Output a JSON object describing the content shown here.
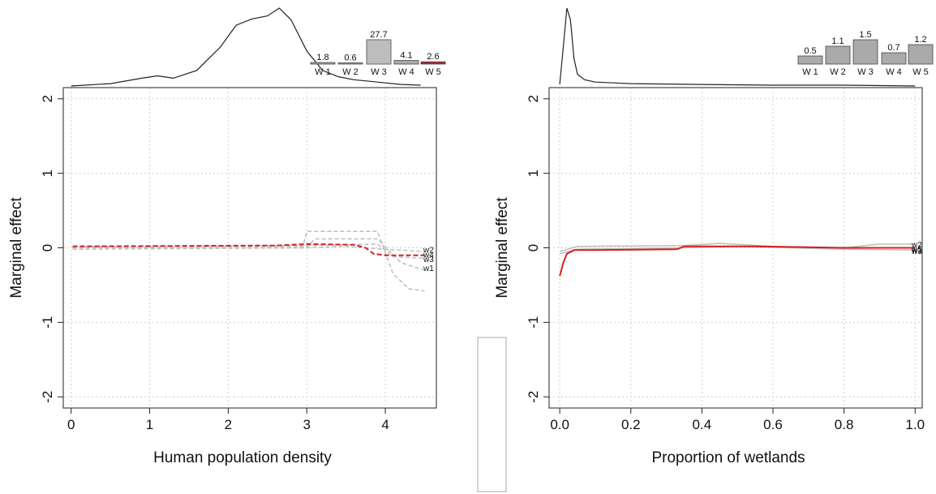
{
  "chart_data": [
    {
      "type": "line",
      "xlabel": "Human population density",
      "ylabel": "Marginal effect",
      "xlim": [
        -0.1,
        4.65
      ],
      "ylim": [
        -2.15,
        2.15
      ],
      "xticks": [
        "0",
        "1",
        "2",
        "3",
        "4"
      ],
      "xtick_values": [
        0,
        1,
        2,
        3,
        4
      ],
      "yticks": [
        "2",
        "1",
        "0",
        "-1",
        "-2"
      ],
      "ytick_values": [
        2,
        1,
        0,
        -1,
        -2
      ],
      "grid": true,
      "density": {
        "x": [
          0,
          0.5,
          0.9,
          1.1,
          1.3,
          1.6,
          1.9,
          2.1,
          2.3,
          2.5,
          2.65,
          2.8,
          3.0,
          3.2,
          3.4,
          3.6,
          3.8,
          4.0,
          4.2,
          4.45
        ],
        "y": [
          0.0,
          0.03,
          0.1,
          0.13,
          0.1,
          0.2,
          0.5,
          0.78,
          0.86,
          0.9,
          1.0,
          0.85,
          0.45,
          0.2,
          0.12,
          0.08,
          0.06,
          0.04,
          0.02,
          0.01
        ]
      },
      "bars": {
        "labels": [
          "W 1",
          "W 2",
          "W 3",
          "W 4",
          "W 5"
        ],
        "values": [
          1.8,
          0.6,
          27.7,
          4.1,
          2.6
        ],
        "value_labels": [
          "1.8",
          "0.6",
          "27.7",
          "4.1",
          "2.6"
        ],
        "colors": [
          "#aaaaaa",
          "#aaaaaa",
          "#bdbdbd",
          "#aaaaaa",
          "#b0233a"
        ]
      },
      "series": [
        {
          "name": "w1",
          "color": "#bdbdbd",
          "dashed": true,
          "x": [
            0.02,
            2.95,
            3.0,
            3.9,
            4.1,
            4.3,
            4.5
          ],
          "y": [
            0.02,
            0.02,
            0.22,
            0.22,
            -0.35,
            -0.55,
            -0.58
          ]
        },
        {
          "name": "w2",
          "color": "#bdbdbd",
          "dashed": true,
          "x": [
            0.02,
            3.0,
            3.5,
            4.0,
            4.5
          ],
          "y": [
            -0.02,
            0.0,
            0.02,
            -0.02,
            -0.05
          ]
        },
        {
          "name": "w3",
          "color": "#bdbdbd",
          "dashed": true,
          "x": [
            0.02,
            3.0,
            3.1,
            3.9,
            4.2,
            4.5
          ],
          "y": [
            0.0,
            0.0,
            0.12,
            0.12,
            -0.2,
            -0.3
          ]
        },
        {
          "name": "w4",
          "color": "#bdbdbd",
          "dashed": true,
          "x": [
            0.02,
            3.0,
            3.9,
            4.1,
            4.5
          ],
          "y": [
            0.01,
            0.03,
            0.05,
            -0.12,
            -0.14
          ]
        },
        {
          "name": "",
          "color": "#d42020",
          "dashed": true,
          "x": [
            0.02,
            2.6,
            3.0,
            3.6,
            3.75,
            3.85,
            4.0,
            4.5
          ],
          "y": [
            0.02,
            0.03,
            0.05,
            0.04,
            0.0,
            -0.08,
            -0.1,
            -0.1
          ]
        }
      ],
      "end_labels": [
        {
          "text": "w2",
          "y": -0.03
        },
        {
          "text": "w4",
          "y": -0.1
        },
        {
          "text": "w3",
          "y": -0.16
        },
        {
          "text": "w1",
          "y": -0.28
        }
      ]
    },
    {
      "type": "line",
      "xlabel": "Proportion of wetlands",
      "ylabel": "Marginal effect",
      "xlim": [
        -0.03,
        1.02
      ],
      "ylim": [
        -2.15,
        2.15
      ],
      "xticks": [
        "0.0",
        "0.2",
        "0.4",
        "0.6",
        "0.8",
        "1.0"
      ],
      "xtick_values": [
        0,
        0.2,
        0.4,
        0.6,
        0.8,
        1.0
      ],
      "yticks": [
        "2",
        "1",
        "0",
        "-1",
        "-2"
      ],
      "ytick_values": [
        2,
        1,
        0,
        -1,
        -2
      ],
      "grid": true,
      "density": {
        "x": [
          0.0,
          0.01,
          0.02,
          0.03,
          0.04,
          0.05,
          0.07,
          0.1,
          0.2,
          0.4,
          0.6,
          0.8,
          1.0
        ],
        "y": [
          0.02,
          0.5,
          1.0,
          0.85,
          0.35,
          0.15,
          0.08,
          0.05,
          0.03,
          0.02,
          0.01,
          0.01,
          0.0
        ]
      },
      "bars": {
        "labels": [
          "W 1",
          "W 2",
          "W 3",
          "W 4",
          "W 5"
        ],
        "values": [
          0.5,
          1.1,
          1.5,
          0.7,
          1.2
        ],
        "value_labels": [
          "0.5",
          "1.1",
          "1.5",
          "0.7",
          "1.2"
        ],
        "colors": [
          "#aaaaaa",
          "#aaaaaa",
          "#aaaaaa",
          "#aaaaaa",
          "#aaaaaa"
        ]
      },
      "series": [
        {
          "name": "w2",
          "color": "#bdbdbd",
          "dashed": false,
          "x": [
            0.0,
            0.05,
            0.35,
            0.45,
            0.6,
            0.8,
            0.9,
            1.0
          ],
          "y": [
            -0.05,
            0.02,
            0.03,
            0.06,
            0.02,
            0.0,
            0.05,
            0.05
          ]
        },
        {
          "name": "w3",
          "color": "#bdbdbd",
          "dashed": false,
          "x": [
            0.0,
            0.05,
            0.35,
            0.5,
            0.8,
            1.0
          ],
          "y": [
            -0.08,
            -0.02,
            0.0,
            0.02,
            -0.02,
            -0.03
          ]
        },
        {
          "name": "",
          "color": "#d42020",
          "dashed": false,
          "x": [
            0.0,
            0.01,
            0.02,
            0.04,
            0.1,
            0.33,
            0.35,
            0.55,
            0.8,
            1.0
          ],
          "y": [
            -0.38,
            -0.2,
            -0.08,
            -0.03,
            -0.03,
            -0.02,
            0.02,
            0.02,
            0.0,
            0.0
          ]
        }
      ],
      "end_labels": [
        {
          "text": "w2",
          "y": 0.04
        },
        {
          "text": "w5",
          "y": -0.02
        },
        {
          "text": "w1",
          "y": -0.035
        },
        {
          "text": "w3",
          "y": -0.05
        }
      ]
    }
  ]
}
